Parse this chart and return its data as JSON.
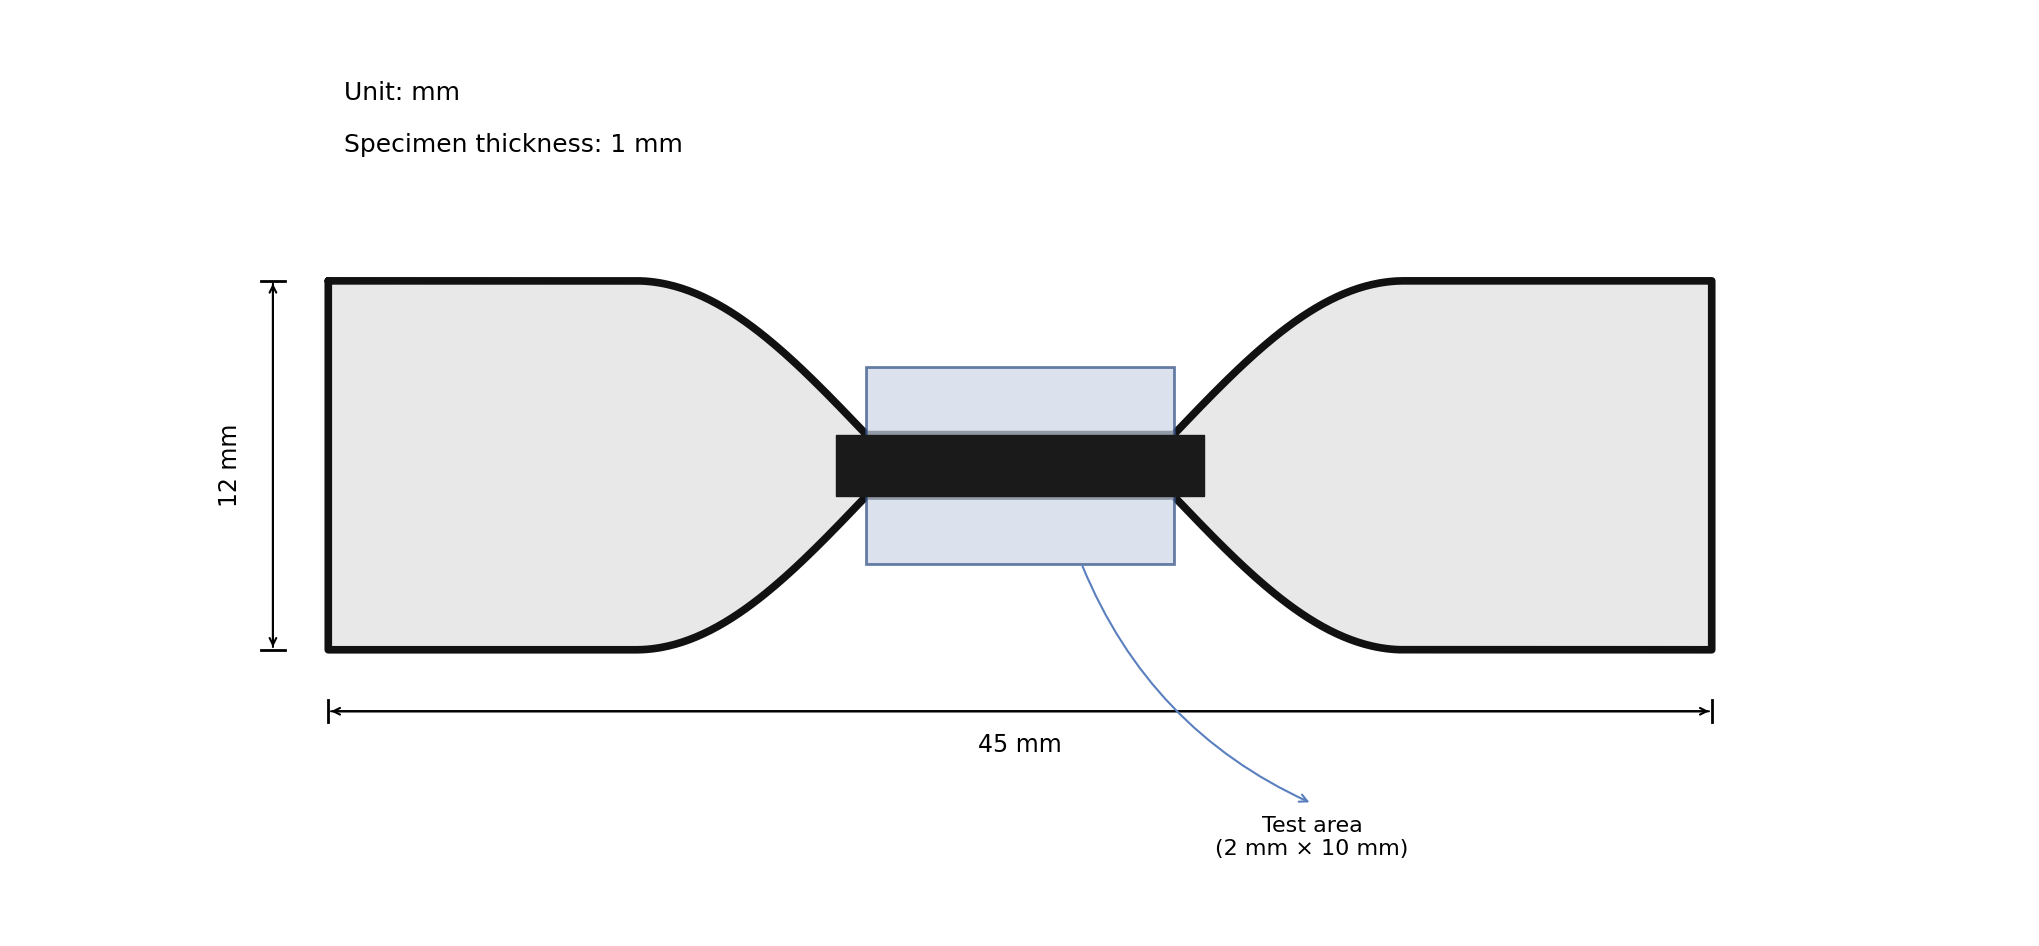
{
  "background_color": "#ffffff",
  "specimen_fill": "#e8e8e8",
  "specimen_edge": "#111111",
  "test_box_fill": "#ccd6e8",
  "test_box_edge": "#2a4a80",
  "arrow_color": "#5a7fbf",
  "unit_text": "Unit: mm",
  "thickness_text": "Specimen thickness: 1 mm",
  "width_label": "12 mm",
  "length_label": "45 mm",
  "test_area_label": "Test area\n(2 mm × 10 mm)",
  "fig_width": 20.4,
  "fig_height": 9.46,
  "dpi": 100,
  "font_size_labels": 17,
  "font_size_annotations": 16,
  "edge_lw": 5.5
}
